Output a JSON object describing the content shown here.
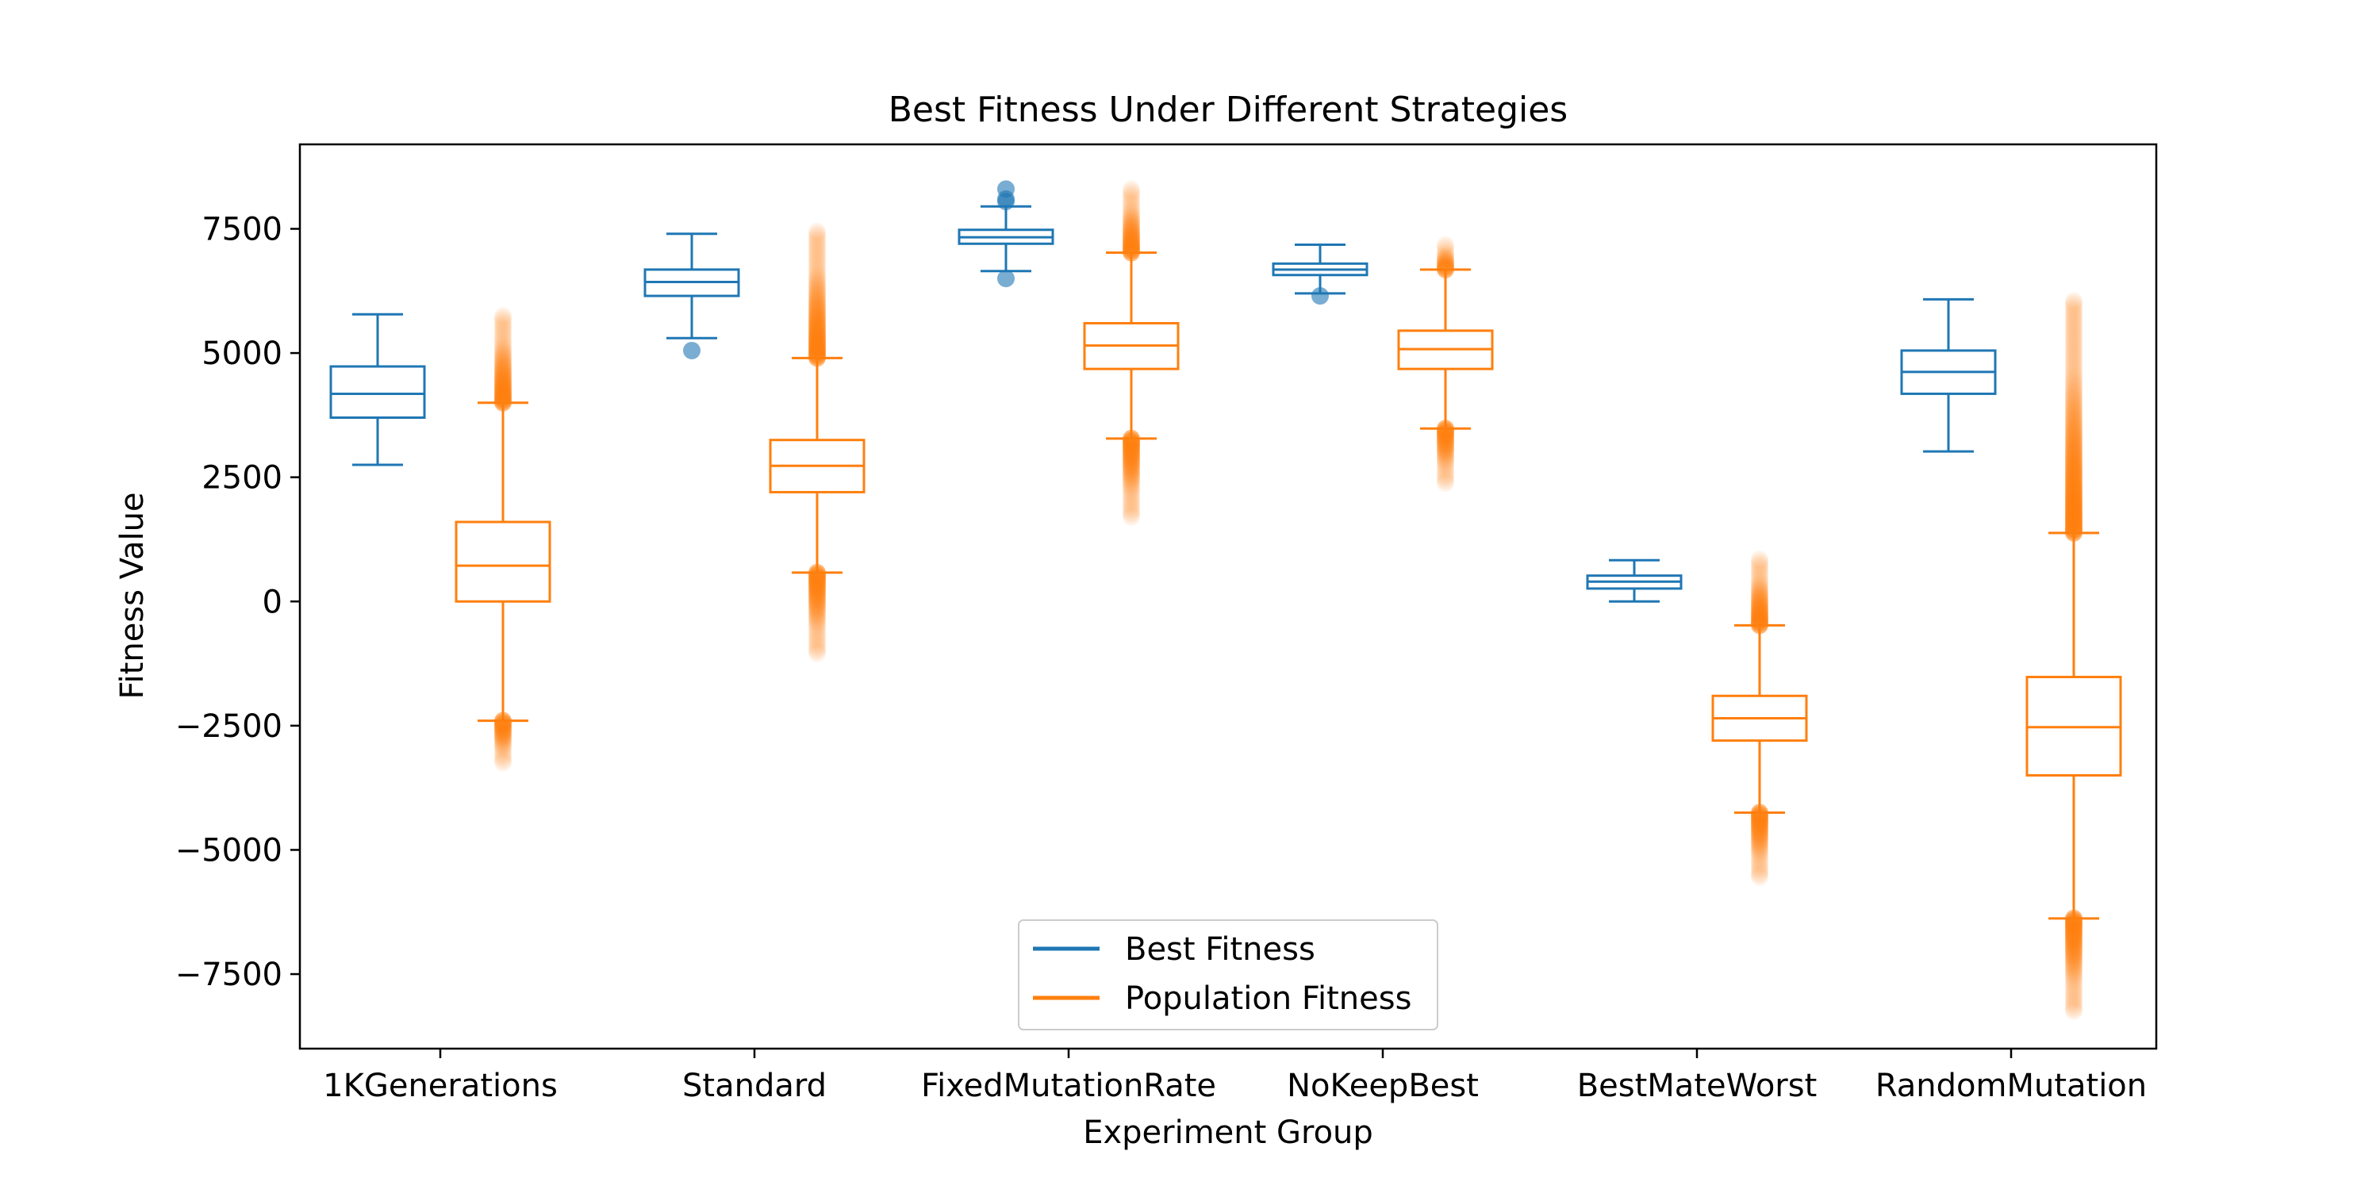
{
  "chart_data": {
    "type": "box",
    "title": "Best Fitness Under Different Strategies",
    "xlabel": "Experiment Group",
    "ylabel": "Fitness Value",
    "ylim": [
      -9000,
      9200
    ],
    "yticks": [
      -7500,
      -5000,
      -2500,
      0,
      2500,
      5000,
      7500
    ],
    "ytick_labels": [
      "−7500",
      "−5000",
      "−2500",
      "0",
      "2500",
      "5000",
      "7500"
    ],
    "categories": [
      "1KGenerations",
      "Standard",
      "FixedMutationRate",
      "NoKeepBest",
      "BestMateWorst",
      "RandomMutation"
    ],
    "legend": {
      "location": "lower center"
    },
    "series": [
      {
        "name": "Best Fitness",
        "color": "#1f77b4",
        "boxes": [
          {
            "whislo": 2750,
            "q1": 3700,
            "med": 4180,
            "q3": 4730,
            "whishi": 5780,
            "fliers": []
          },
          {
            "whislo": 5300,
            "q1": 6150,
            "med": 6430,
            "q3": 6680,
            "whishi": 7400,
            "fliers": [
              5050
            ]
          },
          {
            "whislo": 6650,
            "q1": 7200,
            "med": 7330,
            "q3": 7480,
            "whishi": 7950,
            "fliers": [
              8300,
              8100,
              8050,
              6500
            ]
          },
          {
            "whislo": 6200,
            "q1": 6570,
            "med": 6680,
            "q3": 6800,
            "whishi": 7180,
            "fliers": [
              6150
            ]
          },
          {
            "whislo": 0,
            "q1": 260,
            "med": 400,
            "q3": 520,
            "whishi": 830,
            "fliers": []
          },
          {
            "whislo": 3020,
            "q1": 4180,
            "med": 4620,
            "q3": 5050,
            "whishi": 6080,
            "fliers": []
          }
        ]
      },
      {
        "name": "Population Fitness",
        "color": "#ff7f0e",
        "boxes": [
          {
            "whislo": -2400,
            "q1": 0,
            "med": 720,
            "q3": 1600,
            "whishi": 4000,
            "flier_ranges": [
              [
                4000,
                5750
              ],
              [
                -3250,
                -2400
              ]
            ]
          },
          {
            "whislo": 580,
            "q1": 2200,
            "med": 2730,
            "q3": 3250,
            "whishi": 4900,
            "flier_ranges": [
              [
                4900,
                7450
              ],
              [
                -1050,
                580
              ]
            ]
          },
          {
            "whislo": 3280,
            "q1": 4680,
            "med": 5150,
            "q3": 5600,
            "whishi": 7020,
            "flier_ranges": [
              [
                7020,
                8300
              ],
              [
                1700,
                3280
              ]
            ]
          },
          {
            "whislo": 3480,
            "q1": 4680,
            "med": 5080,
            "q3": 5450,
            "whishi": 6680,
            "flier_ranges": [
              [
                6680,
                7180
              ],
              [
                2380,
                3480
              ]
            ]
          },
          {
            "whislo": -4250,
            "q1": -2800,
            "med": -2350,
            "q3": -1900,
            "whishi": -480,
            "flier_ranges": [
              [
                -480,
                850
              ],
              [
                -5550,
                -4250
              ]
            ]
          },
          {
            "whislo": -6380,
            "q1": -3500,
            "med": -2530,
            "q3": -1520,
            "whishi": 1380,
            "flier_ranges": [
              [
                1380,
                6050
              ],
              [
                -8250,
                -6380
              ]
            ]
          }
        ]
      }
    ]
  }
}
